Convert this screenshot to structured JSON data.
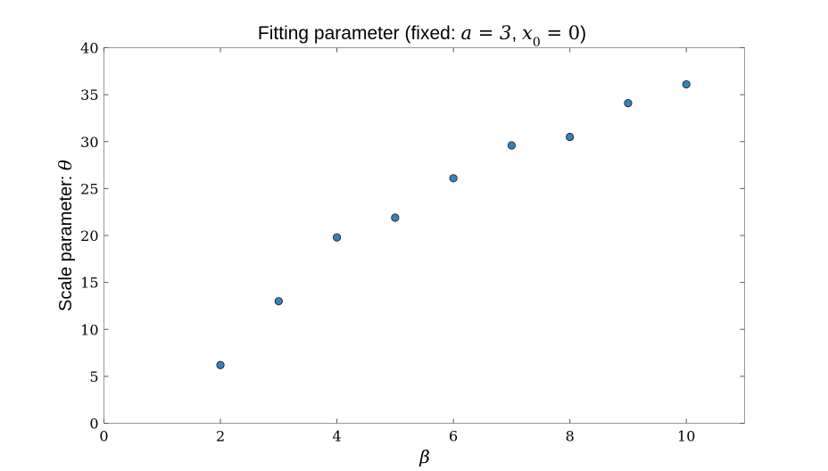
{
  "chart_data": {
    "type": "scatter",
    "title_prefix": "Fitting parameter (fixed: ",
    "title_math_a": "a = 3",
    "title_sep": ", ",
    "title_math_x": "x",
    "title_math_sub": "0",
    "title_math_x_val": " = 0",
    "title_suffix": ")",
    "xlabel": "β",
    "ylabel_text": "Scale parameter: ",
    "ylabel_math": "θ",
    "xlim": [
      0,
      11
    ],
    "ylim": [
      0,
      40
    ],
    "xticks": [
      0,
      2,
      4,
      6,
      8,
      10
    ],
    "yticks": [
      0,
      5,
      10,
      15,
      20,
      25,
      30,
      35,
      40
    ],
    "grid": false,
    "marker_color": "#3182bd",
    "x": [
      2,
      3,
      4,
      5,
      6,
      7,
      8,
      9,
      10
    ],
    "y": [
      6.2,
      13.0,
      19.8,
      21.9,
      26.1,
      29.6,
      30.5,
      34.1,
      36.1
    ]
  }
}
